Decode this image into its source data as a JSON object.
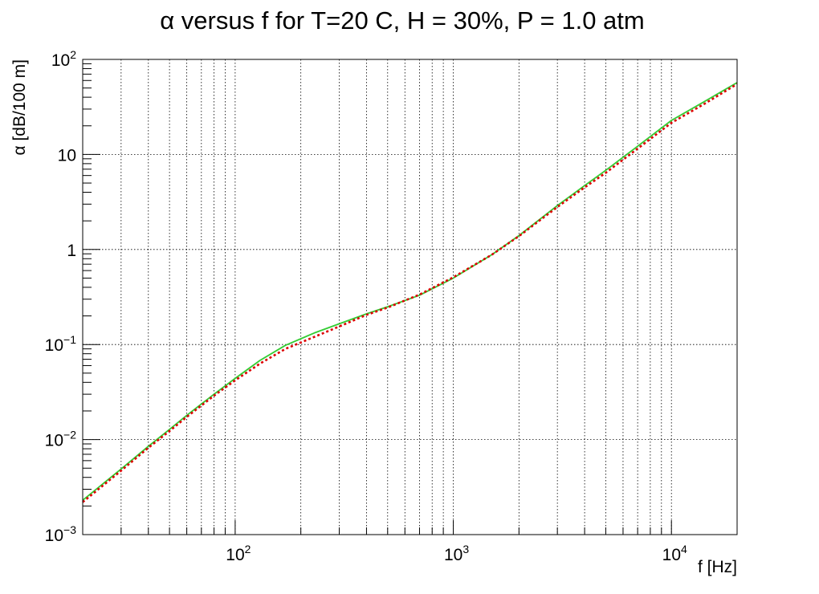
{
  "chart_data": {
    "type": "line",
    "title": "α versus f for T=20 C, H = 30%, P = 1.0 atm",
    "xlabel": "f [Hz]",
    "ylabel": "α [dB/100 m]",
    "xscale": "log",
    "yscale": "log",
    "xlim": [
      20,
      20000
    ],
    "ylim": [
      0.001,
      100
    ],
    "grid": true,
    "x_major_ticks": [
      {
        "value": 100,
        "base": "10",
        "exp": "2"
      },
      {
        "value": 1000,
        "base": "10",
        "exp": "3"
      },
      {
        "value": 10000,
        "base": "10",
        "exp": "4"
      }
    ],
    "y_major_ticks": [
      {
        "value": 0.001,
        "base": "10",
        "exp": "−3"
      },
      {
        "value": 0.01,
        "base": "10",
        "exp": "−2"
      },
      {
        "value": 0.1,
        "base": "10",
        "exp": "−1"
      },
      {
        "value": 1,
        "base": "1",
        "exp": ""
      },
      {
        "value": 10,
        "base": "10",
        "exp": ""
      },
      {
        "value": 100,
        "base": "10",
        "exp": "2"
      }
    ],
    "series": [
      {
        "color": "#33cc33",
        "style": "solid",
        "x": [
          20,
          30,
          40,
          50,
          60,
          80,
          100,
          130,
          170,
          230,
          300,
          400,
          500,
          700,
          1000,
          1500,
          2000,
          3000,
          4000,
          5000,
          7000,
          10000,
          14000,
          20000
        ],
        "y": [
          0.0023,
          0.0049,
          0.0085,
          0.0128,
          0.018,
          0.03,
          0.044,
          0.068,
          0.098,
          0.132,
          0.165,
          0.21,
          0.25,
          0.33,
          0.5,
          0.88,
          1.4,
          2.9,
          4.7,
          6.8,
          12.2,
          22.8,
          35.5,
          57
        ]
      },
      {
        "color": "#dd0000",
        "style": "dotted",
        "x": [
          20,
          30,
          40,
          50,
          60,
          80,
          100,
          130,
          170,
          230,
          300,
          400,
          500,
          700,
          1000,
          1500,
          2000,
          3000,
          4000,
          5000,
          7000,
          10000,
          14000,
          20000
        ],
        "y": [
          0.0022,
          0.0047,
          0.0082,
          0.0123,
          0.0173,
          0.029,
          0.042,
          0.063,
          0.09,
          0.12,
          0.155,
          0.205,
          0.245,
          0.335,
          0.51,
          0.88,
          1.38,
          2.8,
          4.5,
          6.4,
          11.5,
          21.5,
          33.5,
          55
        ]
      }
    ]
  }
}
